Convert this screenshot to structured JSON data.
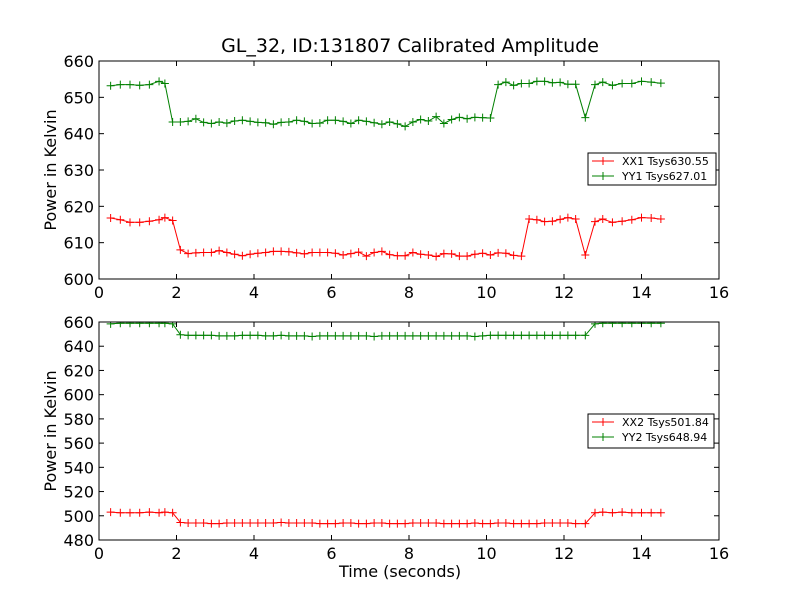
{
  "chart_data": [
    {
      "type": "line",
      "title": "GL_32, ID:131807 Calibrated Amplitude",
      "xlabel": "",
      "ylabel": "Power in Kelvin",
      "xlim": [
        0,
        16
      ],
      "ylim": [
        600,
        660
      ],
      "xticks": [
        "0",
        "2",
        "4",
        "6",
        "8",
        "10",
        "12",
        "14",
        "16"
      ],
      "yticks": [
        "600",
        "610",
        "620",
        "630",
        "640",
        "650",
        "660"
      ],
      "grid": false,
      "legend_position": "center-right",
      "x": [
        0.3,
        0.55,
        0.8,
        1.05,
        1.3,
        1.55,
        1.7,
        1.9,
        2.1,
        2.3,
        2.5,
        2.7,
        2.9,
        3.1,
        3.3,
        3.5,
        3.7,
        3.9,
        4.1,
        4.3,
        4.5,
        4.7,
        4.9,
        5.1,
        5.3,
        5.5,
        5.7,
        5.9,
        6.1,
        6.3,
        6.5,
        6.7,
        6.9,
        7.1,
        7.3,
        7.5,
        7.7,
        7.9,
        8.1,
        8.3,
        8.5,
        8.7,
        8.9,
        9.1,
        9.3,
        9.5,
        9.7,
        9.9,
        10.1,
        10.3,
        10.5,
        10.7,
        10.9,
        11.1,
        11.3,
        11.5,
        11.7,
        11.9,
        12.1,
        12.3,
        12.55,
        12.8,
        13.0,
        13.25,
        13.5,
        13.75,
        14.0,
        14.25,
        14.5
      ],
      "series": [
        {
          "name": "XX1 Tsys630.55",
          "color": "#ff0000",
          "values": [
            616.8,
            616.3,
            615.6,
            615.6,
            615.9,
            616.3,
            616.9,
            616.1,
            608.0,
            607.0,
            607.2,
            607.3,
            607.3,
            607.8,
            607.3,
            606.8,
            606.4,
            606.8,
            607.1,
            607.3,
            607.6,
            607.6,
            607.5,
            607.2,
            606.9,
            607.3,
            607.3,
            607.3,
            607.1,
            606.6,
            607.0,
            607.4,
            606.3,
            607.3,
            607.6,
            606.7,
            606.4,
            606.4,
            607.3,
            606.8,
            606.6,
            606.2,
            607.0,
            606.9,
            606.3,
            606.3,
            606.8,
            607.1,
            606.6,
            607.2,
            607.1,
            606.5,
            606.3,
            616.5,
            616.3,
            615.8,
            615.9,
            616.4,
            616.9,
            616.5,
            606.6,
            615.8,
            616.5,
            615.6,
            615.9,
            616.3,
            616.9,
            616.8,
            616.5
          ]
        },
        {
          "name": "YY1 Tsys627.01",
          "color": "#008000",
          "values": [
            653.2,
            653.5,
            653.5,
            653.3,
            653.5,
            654.4,
            653.8,
            643.2,
            643.2,
            643.4,
            644.1,
            643.1,
            642.8,
            643.2,
            642.9,
            643.5,
            643.7,
            643.4,
            643.1,
            643.0,
            642.6,
            643.1,
            643.2,
            643.7,
            643.4,
            642.8,
            642.9,
            643.7,
            643.7,
            643.4,
            642.8,
            643.7,
            643.4,
            643.0,
            642.6,
            643.2,
            642.7,
            642.0,
            643.2,
            643.9,
            643.5,
            644.7,
            642.8,
            643.9,
            644.5,
            644.1,
            644.5,
            644.4,
            644.3,
            653.5,
            654.2,
            653.3,
            653.8,
            653.8,
            654.4,
            654.4,
            654.0,
            654.1,
            653.6,
            653.6,
            644.4,
            653.5,
            654.2,
            653.3,
            653.8,
            653.8,
            654.4,
            654.2,
            653.9
          ]
        }
      ]
    },
    {
      "type": "line",
      "title": "",
      "xlabel": "Time (seconds)",
      "ylabel": "Power in Kelvin",
      "xlim": [
        0,
        16
      ],
      "ylim": [
        480,
        660
      ],
      "xticks": [
        "0",
        "2",
        "4",
        "6",
        "8",
        "10",
        "12",
        "14",
        "16"
      ],
      "yticks": [
        "480",
        "500",
        "520",
        "540",
        "560",
        "580",
        "600",
        "620",
        "640",
        "660"
      ],
      "grid": false,
      "legend_position": "center-right",
      "x": [
        0.3,
        0.55,
        0.8,
        1.05,
        1.3,
        1.55,
        1.7,
        1.9,
        2.1,
        2.3,
        2.5,
        2.7,
        2.9,
        3.1,
        3.3,
        3.5,
        3.7,
        3.9,
        4.1,
        4.3,
        4.5,
        4.7,
        4.9,
        5.1,
        5.3,
        5.5,
        5.7,
        5.9,
        6.1,
        6.3,
        6.5,
        6.7,
        6.9,
        7.1,
        7.3,
        7.5,
        7.7,
        7.9,
        8.1,
        8.3,
        8.5,
        8.7,
        8.9,
        9.1,
        9.3,
        9.5,
        9.7,
        9.9,
        10.1,
        10.3,
        10.5,
        10.7,
        10.9,
        11.1,
        11.3,
        11.5,
        11.7,
        11.9,
        12.1,
        12.3,
        12.55,
        12.8,
        13.0,
        13.25,
        13.5,
        13.75,
        14.0,
        14.25,
        14.5
      ],
      "series": [
        {
          "name": "XX2 Tsys501.84",
          "color": "#ff0000",
          "values": [
            503.0,
            502.5,
            502.5,
            502.5,
            503.0,
            502.5,
            503.0,
            502.5,
            494.5,
            494.0,
            494.0,
            494.0,
            493.5,
            493.5,
            494.0,
            494.0,
            494.0,
            494.0,
            494.0,
            494.0,
            494.0,
            494.5,
            494.0,
            494.0,
            494.0,
            494.0,
            493.5,
            493.5,
            493.5,
            494.0,
            494.0,
            493.5,
            493.5,
            494.0,
            494.0,
            493.5,
            493.5,
            493.5,
            494.0,
            494.0,
            494.0,
            494.0,
            493.5,
            493.5,
            493.5,
            493.5,
            494.0,
            493.5,
            493.5,
            494.0,
            494.0,
            493.5,
            493.5,
            493.5,
            493.5,
            494.0,
            494.0,
            494.0,
            494.0,
            493.5,
            493.5,
            502.5,
            503.0,
            502.5,
            503.0,
            502.5,
            502.5,
            502.5,
            502.5
          ]
        },
        {
          "name": "YY2 Tsys648.94",
          "color": "#008000",
          "values": [
            658.5,
            659.0,
            659.0,
            659.0,
            659.0,
            659.0,
            659.0,
            658.5,
            649.5,
            649.0,
            649.0,
            649.0,
            649.0,
            648.5,
            648.5,
            648.5,
            649.0,
            649.0,
            649.0,
            648.5,
            648.5,
            649.0,
            648.5,
            648.5,
            648.5,
            648.0,
            648.5,
            648.5,
            648.5,
            648.5,
            648.5,
            648.5,
            648.5,
            648.0,
            648.5,
            648.5,
            648.5,
            648.5,
            648.5,
            648.5,
            648.5,
            648.5,
            648.5,
            648.5,
            648.5,
            648.5,
            648.0,
            648.5,
            649.0,
            649.0,
            649.0,
            649.0,
            649.0,
            649.0,
            649.0,
            649.0,
            649.0,
            649.0,
            649.0,
            649.0,
            649.0,
            658.5,
            659.0,
            659.0,
            659.0,
            659.0,
            659.0,
            659.0,
            659.0
          ]
        }
      ]
    }
  ]
}
